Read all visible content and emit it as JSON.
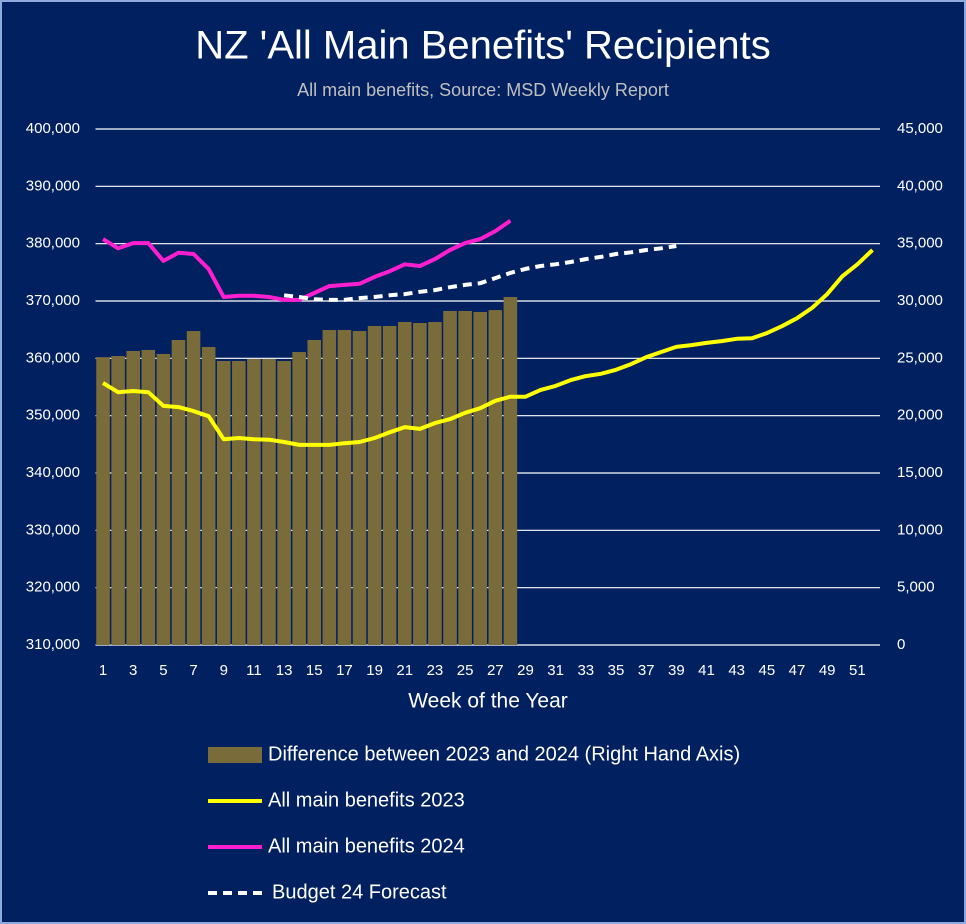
{
  "chart_data": {
    "type": "bar-line",
    "title": "NZ 'All Main Benefits' Recipients",
    "subtitle": "All main benefits, Source: MSD Weekly Report",
    "x_label": "Week of the Year",
    "categories": [
      1,
      null,
      3,
      null,
      5,
      null,
      7,
      null,
      9,
      null,
      11,
      null,
      13,
      null,
      15,
      null,
      17,
      null,
      19,
      null,
      21,
      null,
      23,
      null,
      25,
      null,
      27,
      null,
      29,
      null,
      31,
      null,
      33,
      null,
      35,
      null,
      37,
      null,
      39,
      null,
      41,
      null,
      43,
      null,
      45,
      null,
      47,
      null,
      49,
      null,
      51,
      null
    ],
    "ylim": [
      310000,
      400000
    ],
    "yticks": [
      {
        "value": 310000,
        "label": "310,000"
      },
      {
        "value": 320000,
        "label": "320,000"
      },
      {
        "value": 330000,
        "label": "330,000"
      },
      {
        "value": 340000,
        "label": "340,000"
      },
      {
        "value": 350000,
        "label": "350,000"
      },
      {
        "value": 360000,
        "label": "360,000"
      },
      {
        "value": 370000,
        "label": "370,000"
      },
      {
        "value": 380000,
        "label": "380,000"
      },
      {
        "value": 390000,
        "label": "390,000"
      },
      {
        "value": 400000,
        "label": "400,000"
      }
    ],
    "y2lim": [
      0,
      45000
    ],
    "y2ticks": [
      0,
      {
        "value": 5000,
        "label": "5,000"
      },
      {
        "value": 10000,
        "label": "10,000"
      },
      {
        "value": 15000,
        "label": "15,000"
      },
      {
        "value": 20000,
        "label": "20,000"
      },
      {
        "value": 25000,
        "label": "25,000"
      },
      {
        "value": 30000,
        "label": "30,000"
      },
      {
        "value": 35000,
        "label": "35,000"
      },
      {
        "value": 40000,
        "label": "40,000"
      },
      {
        "value": 45000,
        "label": "45,000"
      }
    ],
    "grid": true,
    "legend": "bottom",
    "series": [
      {
        "name": "Difference between 2023 and 2024 (Right Hand Axis)",
        "type": "bar",
        "axis": "y2",
        "color": "#7a6b3a",
        "values": [
          25100,
          25200,
          25640,
          25730,
          25380,
          26600,
          27380,
          25990,
          24770,
          24770,
          24940,
          24940,
          24770,
          25550,
          26600,
          27470,
          27470,
          27380,
          27820,
          27820,
          28170,
          28080,
          28170,
          29130,
          29130,
          29040,
          29210,
          30350,
          null,
          null,
          null,
          null,
          null,
          null,
          null,
          null,
          null,
          null,
          null,
          null,
          null,
          null,
          null,
          null,
          null,
          null,
          null,
          null,
          null,
          null,
          null,
          null
        ]
      },
      {
        "name": "All main benefits 2023",
        "type": "line",
        "color": "#ffff00",
        "values": [
          355700,
          354100,
          354300,
          354100,
          351700,
          351500,
          350800,
          349900,
          345900,
          346100,
          345900,
          345800,
          345400,
          344900,
          344900,
          344900,
          345200,
          345400,
          346100,
          347100,
          348000,
          347700,
          348700,
          349400,
          350500,
          351300,
          352600,
          353300,
          353300,
          354500,
          355200,
          356200,
          356900,
          357300,
          358000,
          359000,
          360200,
          361100,
          362000,
          362300,
          362700,
          363000,
          363400,
          363500,
          364400,
          365600,
          367000,
          368800,
          371200,
          374300,
          376400,
          378900
        ]
      },
      {
        "name": "All main benefits 2024",
        "type": "line",
        "color": "#ff1fcf",
        "values": [
          380800,
          379200,
          380100,
          380100,
          377000,
          378400,
          378200,
          375600,
          370700,
          370900,
          370900,
          370700,
          370200,
          370200,
          371400,
          372600,
          372800,
          373000,
          374200,
          375200,
          376400,
          376100,
          377300,
          378900,
          380100,
          380800,
          382200,
          384000,
          null,
          null,
          null,
          null,
          null,
          null,
          null,
          null,
          null,
          null,
          null,
          null,
          null,
          null,
          null,
          null,
          null,
          null,
          null,
          null,
          null,
          null,
          null,
          null
        ]
      },
      {
        "name": "Budget 24 Forecast",
        "type": "line",
        "dashed": true,
        "color": "#ffffff",
        "values": [
          null,
          null,
          null,
          null,
          null,
          null,
          null,
          null,
          null,
          null,
          null,
          null,
          371000,
          370700,
          370300,
          370200,
          370200,
          370500,
          370700,
          371000,
          371200,
          371600,
          371900,
          372400,
          372800,
          373100,
          374000,
          374900,
          375600,
          376100,
          376400,
          376800,
          377300,
          377700,
          378200,
          378500,
          378900,
          379200,
          379600,
          null,
          null,
          null,
          null,
          null,
          null,
          null,
          null,
          null,
          null,
          null,
          null,
          null
        ]
      }
    ]
  }
}
